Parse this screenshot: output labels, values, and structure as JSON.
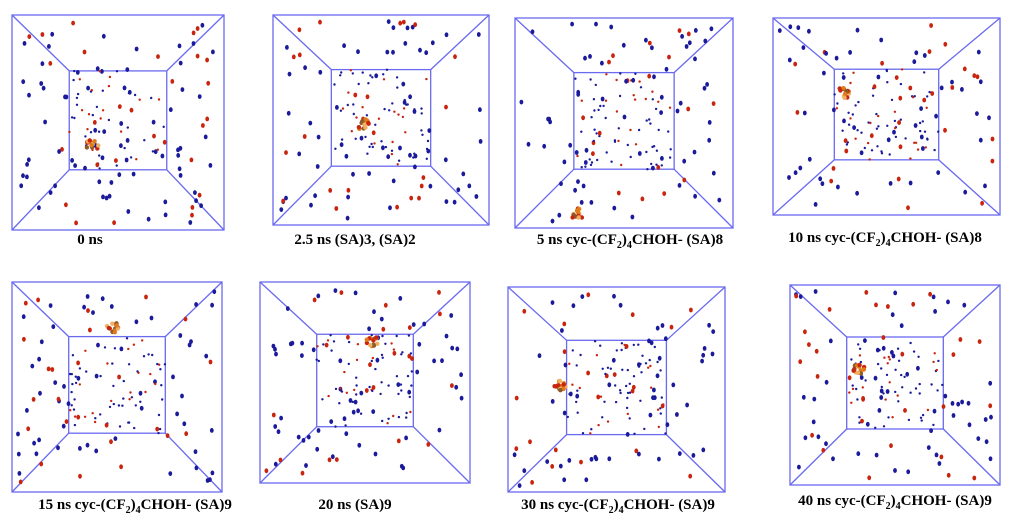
{
  "panels": [
    {
      "caption": [
        {
          "text": "0 ns",
          "sub": false
        }
      ]
    },
    {
      "caption": [
        {
          "text": "2.5 ns (SA)3, (SA)2",
          "sub": false
        }
      ]
    },
    {
      "caption": [
        {
          "text": "5 ns cyc-(CF",
          "sub": false
        },
        {
          "text": "2",
          "sub": true
        },
        {
          "text": ")",
          "sub": false
        },
        {
          "text": "4",
          "sub": true
        },
        {
          "text": "CHOH- (SA)8",
          "sub": false
        }
      ]
    },
    {
      "caption": [
        {
          "text": "10 ns cyc-(CF",
          "sub": false
        },
        {
          "text": "2",
          "sub": true
        },
        {
          "text": ")",
          "sub": false
        },
        {
          "text": "4",
          "sub": true
        },
        {
          "text": "CHOH- (SA)8",
          "sub": false
        }
      ]
    },
    {
      "caption": [
        {
          "text": "15 ns cyc-(CF",
          "sub": false
        },
        {
          "text": "2",
          "sub": true
        },
        {
          "text": ")",
          "sub": false
        },
        {
          "text": "4",
          "sub": true
        },
        {
          "text": "CHOH- (SA)9",
          "sub": false
        }
      ]
    },
    {
      "caption": [
        {
          "text": "20 ns (SA)9",
          "sub": false
        }
      ]
    },
    {
      "caption": [
        {
          "text": "30 ns cyc-(CF",
          "sub": false
        },
        {
          "text": "2",
          "sub": true
        },
        {
          "text": ")",
          "sub": false
        },
        {
          "text": "4",
          "sub": true
        },
        {
          "text": "CHOH- (SA)9",
          "sub": false
        }
      ]
    },
    {
      "caption": [
        {
          "text": "40 ns cyc-(CF",
          "sub": false
        },
        {
          "text": "2",
          "sub": true
        },
        {
          "text": ")",
          "sub": false
        },
        {
          "text": "4",
          "sub": true
        },
        {
          "text": "CHOH- (SA)9",
          "sub": false
        }
      ]
    }
  ]
}
